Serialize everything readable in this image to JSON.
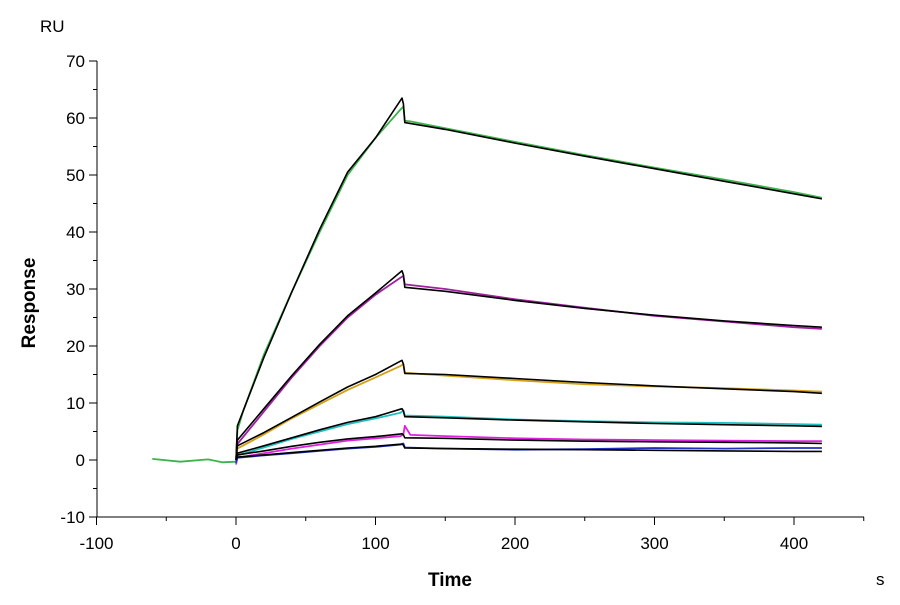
{
  "chart_data": {
    "type": "line",
    "title": "",
    "xlabel": "Time",
    "ylabel": "Response",
    "x_unit": "s",
    "y_unit": "RU",
    "xlim": [
      -100,
      450
    ],
    "ylim": [
      -10,
      70
    ],
    "x_ticks": [
      -100,
      0,
      100,
      200,
      300,
      400
    ],
    "y_ticks": [
      -10,
      0,
      10,
      20,
      30,
      40,
      50,
      60,
      70
    ],
    "grid": false,
    "legend": "none",
    "series": [
      {
        "color": "#3cb44b",
        "x": [
          -60,
          -40,
          -20,
          -10,
          0,
          1,
          5,
          20,
          40,
          60,
          80,
          100,
          118,
          120,
          121,
          125,
          150,
          200,
          250,
          300,
          350,
          400,
          420
        ],
        "y": [
          0.2,
          -0.3,
          0.1,
          -0.4,
          -0.3,
          5.2,
          8.5,
          18.5,
          29.5,
          40.0,
          50.0,
          56.5,
          61.5,
          62.0,
          59.5,
          59.4,
          58.2,
          55.8,
          53.5,
          51.3,
          49.2,
          47.0,
          46.0
        ]
      },
      {
        "color": "#000000",
        "x": [
          0,
          1,
          20,
          40,
          60,
          80,
          100,
          119,
          120,
          121,
          150,
          200,
          250,
          300,
          350,
          400,
          420
        ],
        "y": [
          0.0,
          6.0,
          18.0,
          29.5,
          40.5,
          50.5,
          56.5,
          63.5,
          62.5,
          59.2,
          58.0,
          55.6,
          53.3,
          51.1,
          48.9,
          46.7,
          45.8
        ]
      },
      {
        "color": "#a020a0",
        "x": [
          0,
          1,
          20,
          40,
          60,
          80,
          100,
          118,
          120,
          121,
          150,
          200,
          250,
          300,
          350,
          400,
          420
        ],
        "y": [
          0.0,
          2.8,
          8.5,
          14.5,
          20.0,
          25.0,
          29.0,
          32.0,
          32.3,
          30.8,
          30.0,
          28.2,
          26.7,
          25.3,
          24.3,
          23.3,
          23.0
        ]
      },
      {
        "color": "#000000",
        "x": [
          0,
          1,
          20,
          40,
          60,
          80,
          100,
          119,
          120,
          121,
          150,
          200,
          250,
          300,
          350,
          400,
          420
        ],
        "y": [
          0.0,
          3.5,
          9.0,
          14.8,
          20.3,
          25.3,
          29.3,
          33.2,
          32.5,
          30.3,
          29.6,
          28.0,
          26.6,
          25.4,
          24.4,
          23.6,
          23.3
        ]
      },
      {
        "color": "#d4a017",
        "x": [
          0,
          1,
          20,
          40,
          60,
          80,
          100,
          118,
          120,
          121,
          150,
          200,
          250,
          300,
          350,
          400,
          420
        ],
        "y": [
          0.0,
          2.0,
          4.5,
          7.3,
          9.8,
          12.3,
          14.5,
          16.5,
          16.8,
          15.3,
          14.8,
          14.0,
          13.3,
          12.9,
          12.6,
          12.2,
          12.0
        ]
      },
      {
        "color": "#000000",
        "x": [
          0,
          1,
          20,
          40,
          60,
          80,
          100,
          119,
          120,
          121,
          150,
          200,
          250,
          300,
          350,
          400,
          420
        ],
        "y": [
          0.0,
          2.5,
          4.8,
          7.5,
          10.2,
          12.8,
          15.0,
          17.5,
          16.8,
          15.2,
          15.0,
          14.3,
          13.6,
          13.0,
          12.5,
          12.0,
          11.7
        ]
      },
      {
        "color": "#20c0c0",
        "x": [
          0,
          1,
          20,
          40,
          60,
          80,
          100,
          118,
          120,
          121,
          150,
          200,
          250,
          300,
          350,
          400,
          420
        ],
        "y": [
          0.0,
          0.8,
          2.2,
          3.7,
          5.0,
          6.3,
          7.3,
          8.3,
          8.7,
          7.8,
          7.6,
          7.1,
          6.8,
          6.6,
          6.5,
          6.3,
          6.2
        ]
      },
      {
        "color": "#000000",
        "x": [
          0,
          1,
          20,
          40,
          60,
          80,
          100,
          119,
          120,
          121,
          150,
          200,
          250,
          300,
          350,
          400,
          420
        ],
        "y": [
          0.0,
          1.2,
          2.5,
          3.9,
          5.3,
          6.6,
          7.6,
          9.0,
          8.6,
          7.6,
          7.4,
          7.0,
          6.7,
          6.4,
          6.2,
          6.0,
          5.9
        ]
      },
      {
        "color": "#e020e0",
        "x": [
          0,
          1,
          20,
          40,
          60,
          80,
          100,
          118,
          120,
          121,
          125,
          150,
          200,
          250,
          300,
          350,
          400,
          420
        ],
        "y": [
          -0.8,
          0.4,
          1.2,
          2.0,
          2.7,
          3.4,
          3.8,
          4.2,
          4.5,
          6.0,
          4.4,
          4.2,
          3.8,
          3.6,
          3.5,
          3.4,
          3.3,
          3.3
        ]
      },
      {
        "color": "#000000",
        "x": [
          0,
          1,
          20,
          40,
          60,
          80,
          100,
          119,
          120,
          121,
          150,
          200,
          250,
          300,
          350,
          400,
          420
        ],
        "y": [
          0.0,
          0.9,
          1.6,
          2.4,
          3.1,
          3.7,
          4.1,
          4.6,
          4.4,
          3.9,
          3.8,
          3.5,
          3.3,
          3.2,
          3.1,
          3.0,
          2.9
        ]
      },
      {
        "color": "#1f2fbf",
        "x": [
          0,
          1,
          20,
          40,
          60,
          80,
          100,
          118,
          120,
          121,
          150,
          200,
          250,
          300,
          350,
          400,
          420
        ],
        "y": [
          -0.5,
          0.4,
          0.8,
          1.2,
          1.6,
          2.0,
          2.3,
          2.7,
          2.9,
          2.2,
          2.0,
          1.8,
          1.9,
          2.1,
          2.0,
          2.1,
          2.1
        ]
      },
      {
        "color": "#000000",
        "x": [
          0,
          1,
          20,
          40,
          60,
          80,
          100,
          119,
          120,
          121,
          150,
          200,
          250,
          300,
          350,
          400,
          420
        ],
        "y": [
          0.0,
          0.5,
          0.9,
          1.3,
          1.7,
          2.1,
          2.4,
          2.8,
          2.6,
          2.1,
          2.0,
          1.9,
          1.8,
          1.7,
          1.6,
          1.5,
          1.5
        ]
      }
    ]
  }
}
